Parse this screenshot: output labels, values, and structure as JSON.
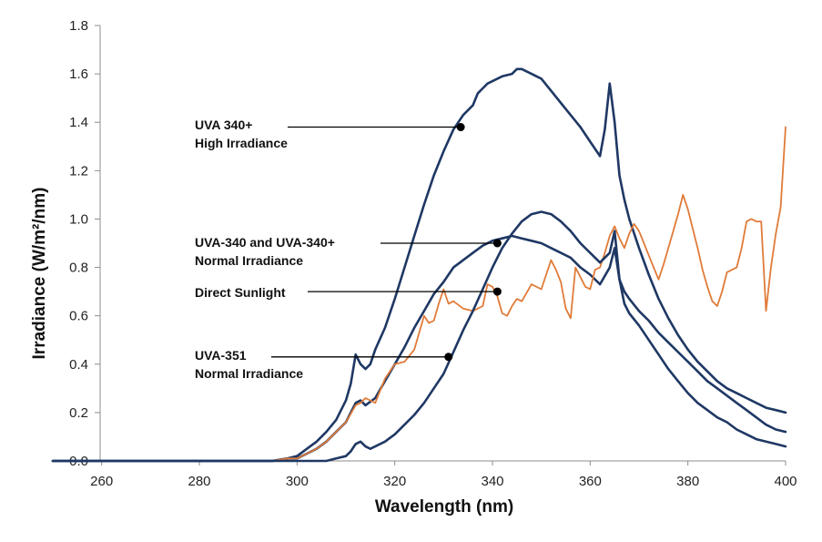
{
  "chart_data": {
    "type": "line",
    "xlabel": "Wavelength (nm)",
    "ylabel": "Irradiance (W/m²/nm)",
    "xlim": [
      250,
      400
    ],
    "ylim": [
      0,
      1.8
    ],
    "xticks": [
      "260",
      "280",
      "300",
      "320",
      "340",
      "360",
      "380",
      "400"
    ],
    "yticks": [
      "0.0",
      "0.2",
      "0.4",
      "0.6",
      "0.8",
      "1.0",
      "1.2",
      "1.4",
      "1.6",
      "1.8"
    ],
    "grid": false,
    "series": [
      {
        "name": "UVA 340+ High Irradiance",
        "color": "#1f3864",
        "x": [
          250,
          295,
          298,
          300,
          302,
          304,
          306,
          308,
          310,
          311,
          312,
          313,
          314,
          315,
          316,
          318,
          320,
          322,
          324,
          326,
          328,
          330,
          332,
          334,
          336,
          337,
          338,
          339,
          340,
          342,
          344,
          345,
          346,
          348,
          350,
          352,
          354,
          356,
          358,
          360,
          362,
          363,
          364,
          365,
          366,
          367,
          368,
          370,
          372,
          374,
          376,
          378,
          380,
          382,
          384,
          386,
          388,
          390,
          392,
          394,
          396,
          398,
          400
        ],
        "y": [
          0,
          0,
          0.01,
          0.02,
          0.05,
          0.08,
          0.12,
          0.17,
          0.25,
          0.32,
          0.44,
          0.4,
          0.38,
          0.4,
          0.46,
          0.55,
          0.67,
          0.8,
          0.93,
          1.06,
          1.18,
          1.28,
          1.37,
          1.43,
          1.47,
          1.52,
          1.54,
          1.56,
          1.57,
          1.59,
          1.6,
          1.62,
          1.62,
          1.6,
          1.58,
          1.53,
          1.48,
          1.43,
          1.38,
          1.32,
          1.26,
          1.37,
          1.56,
          1.4,
          1.18,
          1.08,
          1.0,
          0.88,
          0.77,
          0.67,
          0.59,
          0.52,
          0.46,
          0.41,
          0.37,
          0.33,
          0.3,
          0.28,
          0.26,
          0.24,
          0.22,
          0.21,
          0.2
        ]
      },
      {
        "name": "UVA-340 and UVA-340+ Normal Irradiance",
        "color": "#1f3864",
        "x": [
          250,
          295,
          298,
          300,
          302,
          304,
          306,
          308,
          310,
          311,
          312,
          313,
          314,
          316,
          318,
          320,
          322,
          324,
          326,
          328,
          330,
          332,
          334,
          336,
          338,
          340,
          342,
          344,
          346,
          348,
          350,
          352,
          354,
          356,
          358,
          360,
          362,
          364,
          365,
          366,
          367,
          368,
          370,
          372,
          374,
          376,
          378,
          380,
          382,
          384,
          386,
          388,
          390,
          392,
          394,
          396,
          398,
          400
        ],
        "y": [
          0,
          0,
          0.01,
          0.01,
          0.03,
          0.05,
          0.08,
          0.12,
          0.16,
          0.2,
          0.24,
          0.25,
          0.23,
          0.26,
          0.33,
          0.4,
          0.47,
          0.55,
          0.62,
          0.69,
          0.74,
          0.8,
          0.83,
          0.86,
          0.89,
          0.91,
          0.92,
          0.93,
          0.92,
          0.91,
          0.9,
          0.88,
          0.86,
          0.84,
          0.8,
          0.77,
          0.73,
          0.8,
          0.88,
          0.75,
          0.7,
          0.67,
          0.62,
          0.58,
          0.53,
          0.49,
          0.45,
          0.41,
          0.37,
          0.33,
          0.3,
          0.27,
          0.24,
          0.21,
          0.18,
          0.15,
          0.13,
          0.12
        ]
      },
      {
        "name": "Direct Sunlight",
        "color": "#e07b39",
        "x": [
          250,
          295,
          298,
          300,
          302,
          304,
          306,
          308,
          310,
          312,
          313,
          314,
          316,
          318,
          320,
          322,
          324,
          326,
          327,
          328,
          329,
          330,
          331,
          332,
          334,
          336,
          338,
          339,
          340,
          341,
          342,
          343,
          344,
          345,
          346,
          348,
          350,
          351,
          352,
          353,
          354,
          355,
          356,
          357,
          358,
          359,
          360,
          361,
          362,
          363,
          364,
          365,
          366,
          367,
          368,
          369,
          370,
          371,
          372,
          373,
          374,
          375,
          376,
          377,
          378,
          379,
          380,
          381,
          382,
          383,
          384,
          385,
          386,
          387,
          388,
          389,
          390,
          391,
          392,
          393,
          394,
          395,
          396,
          397,
          398,
          399,
          400
        ],
        "y": [
          0,
          0,
          0.01,
          0.01,
          0.03,
          0.05,
          0.08,
          0.12,
          0.16,
          0.23,
          0.24,
          0.26,
          0.24,
          0.34,
          0.4,
          0.41,
          0.46,
          0.6,
          0.57,
          0.58,
          0.65,
          0.71,
          0.65,
          0.66,
          0.63,
          0.62,
          0.64,
          0.73,
          0.72,
          0.68,
          0.61,
          0.6,
          0.64,
          0.67,
          0.66,
          0.73,
          0.71,
          0.77,
          0.83,
          0.79,
          0.74,
          0.63,
          0.59,
          0.8,
          0.76,
          0.72,
          0.71,
          0.79,
          0.8,
          0.86,
          0.93,
          0.97,
          0.92,
          0.88,
          0.94,
          0.98,
          0.95,
          0.9,
          0.85,
          0.8,
          0.75,
          0.81,
          0.88,
          0.95,
          1.02,
          1.1,
          1.04,
          0.96,
          0.88,
          0.79,
          0.72,
          0.66,
          0.64,
          0.7,
          0.78,
          0.79,
          0.8,
          0.88,
          0.99,
          1.0,
          0.99,
          0.99,
          0.62,
          0.8,
          0.94,
          1.05,
          1.38
        ]
      },
      {
        "name": "UVA-351 Normal Irradiance",
        "color": "#1f3864",
        "x": [
          250,
          295,
          300,
          302,
          304,
          306,
          308,
          310,
          311,
          312,
          313,
          314,
          315,
          316,
          318,
          320,
          322,
          324,
          326,
          328,
          330,
          332,
          334,
          336,
          338,
          340,
          342,
          344,
          346,
          348,
          350,
          352,
          354,
          356,
          358,
          360,
          362,
          364,
          365,
          366,
          367,
          368,
          370,
          372,
          374,
          376,
          378,
          380,
          382,
          384,
          386,
          388,
          390,
          392,
          394,
          396,
          398,
          400
        ],
        "y": [
          0,
          0,
          0,
          0,
          0,
          0,
          0.01,
          0.02,
          0.04,
          0.07,
          0.08,
          0.06,
          0.05,
          0.06,
          0.08,
          0.11,
          0.15,
          0.19,
          0.24,
          0.3,
          0.36,
          0.45,
          0.54,
          0.62,
          0.71,
          0.8,
          0.88,
          0.94,
          0.99,
          1.02,
          1.03,
          1.02,
          0.99,
          0.95,
          0.9,
          0.86,
          0.82,
          0.86,
          0.95,
          0.75,
          0.65,
          0.61,
          0.56,
          0.5,
          0.44,
          0.38,
          0.33,
          0.28,
          0.24,
          0.21,
          0.18,
          0.16,
          0.13,
          0.11,
          0.09,
          0.08,
          0.07,
          0.06
        ]
      }
    ],
    "annotations": [
      {
        "lines": [
          "UVA 340+",
          "High Irradiance"
        ],
        "point": [
          333.5,
          1.38
        ]
      },
      {
        "lines": [
          "UVA-340 and UVA-340+",
          "Normal Irradiance"
        ],
        "point": [
          341,
          0.9
        ]
      },
      {
        "lines": [
          "Direct Sunlight"
        ],
        "point": [
          341,
          0.7
        ]
      },
      {
        "lines": [
          "UVA-351",
          "Normal Irradiance"
        ],
        "point": [
          331,
          0.43
        ]
      }
    ]
  }
}
